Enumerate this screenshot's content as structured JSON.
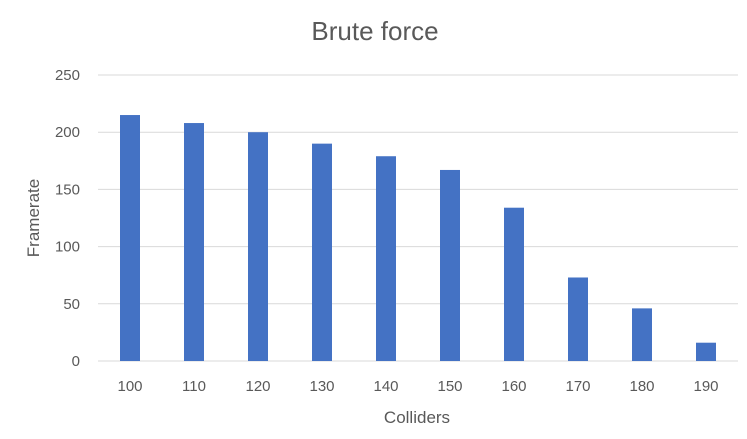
{
  "chart_data": {
    "type": "bar",
    "title": "Brute force",
    "xlabel": "Colliders",
    "ylabel": "Framerate",
    "categories": [
      "100",
      "110",
      "120",
      "130",
      "140",
      "150",
      "160",
      "170",
      "180",
      "190"
    ],
    "series": [
      {
        "values": [
          215,
          208,
          200,
          190,
          179,
          167,
          134,
          73,
          46,
          16
        ],
        "color": "#4472C4"
      }
    ],
    "ylim": [
      0,
      250
    ],
    "yticks": [
      0,
      50,
      100,
      150,
      200,
      250
    ],
    "grid": true,
    "legend": "none"
  }
}
